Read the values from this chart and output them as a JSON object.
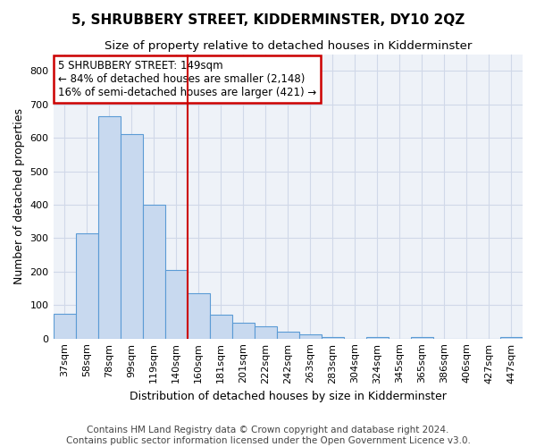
{
  "title": "5, SHRUBBERY STREET, KIDDERMINSTER, DY10 2QZ",
  "subtitle": "Size of property relative to detached houses in Kidderminster",
  "xlabel": "Distribution of detached houses by size in Kidderminster",
  "ylabel": "Number of detached properties",
  "categories": [
    "37sqm",
    "58sqm",
    "78sqm",
    "99sqm",
    "119sqm",
    "140sqm",
    "160sqm",
    "181sqm",
    "201sqm",
    "222sqm",
    "242sqm",
    "263sqm",
    "283sqm",
    "304sqm",
    "324sqm",
    "345sqm",
    "365sqm",
    "386sqm",
    "406sqm",
    "427sqm",
    "447sqm"
  ],
  "values": [
    75,
    315,
    665,
    610,
    400,
    205,
    135,
    70,
    47,
    37,
    20,
    13,
    5,
    0,
    5,
    0,
    5,
    0,
    0,
    0,
    5
  ],
  "bar_color": "#c8d9ef",
  "bar_edge_color": "#5b9bd5",
  "annotation_title": "5 SHRUBBERY STREET: 149sqm",
  "annotation_line1": "← 84% of detached houses are smaller (2,148)",
  "annotation_line2": "16% of semi-detached houses are larger (421) →",
  "annotation_box_color": "#ffffff",
  "annotation_box_edge": "#cc0000",
  "vline_color": "#cc0000",
  "vline_x": 6,
  "ylim": [
    0,
    850
  ],
  "yticks": [
    0,
    100,
    200,
    300,
    400,
    500,
    600,
    700,
    800
  ],
  "grid_color": "#d0d8e8",
  "bg_color": "#ffffff",
  "plot_bg_color": "#eef2f8",
  "title_fontsize": 11,
  "subtitle_fontsize": 9.5,
  "axis_label_fontsize": 9,
  "tick_fontsize": 8,
  "annotation_fontsize": 8.5,
  "footer_fontsize": 7.5
}
